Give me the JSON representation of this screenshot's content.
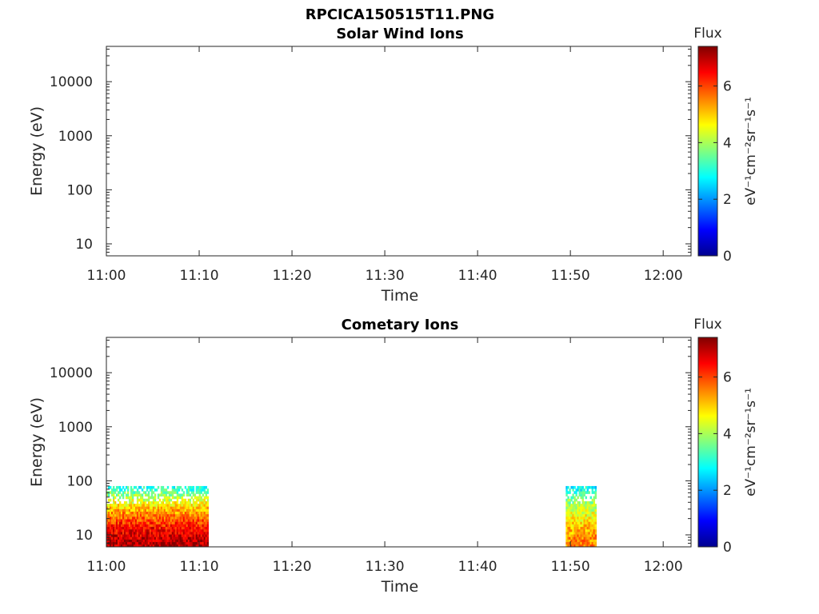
{
  "figure": {
    "title": "RPCICA150515T11.PNG"
  },
  "colorbar": {
    "label": "Flux",
    "unit_label": "eV⁻¹cm⁻²sr⁻¹s⁻¹",
    "range": [
      0,
      7.4
    ],
    "ticks": [
      "0",
      "2",
      "4",
      "6"
    ],
    "colormap": "jet",
    "colormap_stops": [
      "#00008f",
      "#0000ff",
      "#0080ff",
      "#00ffff",
      "#80ff80",
      "#ffff00",
      "#ff8000",
      "#ff0000",
      "#800000"
    ]
  },
  "chart_data": [
    {
      "type": "heatmap",
      "title": "Solar Wind Ions",
      "xlabel": "Time",
      "ylabel": "Energy (eV)",
      "x_tick_labels": [
        "11:00",
        "11:10",
        "11:20",
        "11:30",
        "11:40",
        "11:50",
        "12:00"
      ],
      "y_tick_labels": [
        "10",
        "100",
        "1000",
        "10000"
      ],
      "x_range_minutes": [
        "11:00",
        "12:03"
      ],
      "y_range": [
        6,
        45000
      ],
      "y_scale": "log",
      "flux_regions": []
    },
    {
      "type": "heatmap",
      "title": "Cometary Ions",
      "xlabel": "Time",
      "ylabel": "Energy (eV)",
      "x_tick_labels": [
        "11:00",
        "11:10",
        "11:20",
        "11:30",
        "11:40",
        "11:50",
        "12:00"
      ],
      "y_tick_labels": [
        "10",
        "100",
        "1000",
        "10000"
      ],
      "x_range_minutes": [
        "11:00",
        "12:03"
      ],
      "y_range": [
        6,
        45000
      ],
      "y_scale": "log",
      "flux_regions": [
        {
          "start": "11:00",
          "end": "11:11",
          "energy_min": 6,
          "energy_max": 80,
          "flux_low_energy": 7.0,
          "flux_high_energy": 3.0
        },
        {
          "start": "11:49.5",
          "end": "11:52.8",
          "energy_min": 6,
          "energy_max": 80,
          "flux_low_energy": 5.5,
          "flux_high_energy": 2.8
        }
      ]
    }
  ]
}
